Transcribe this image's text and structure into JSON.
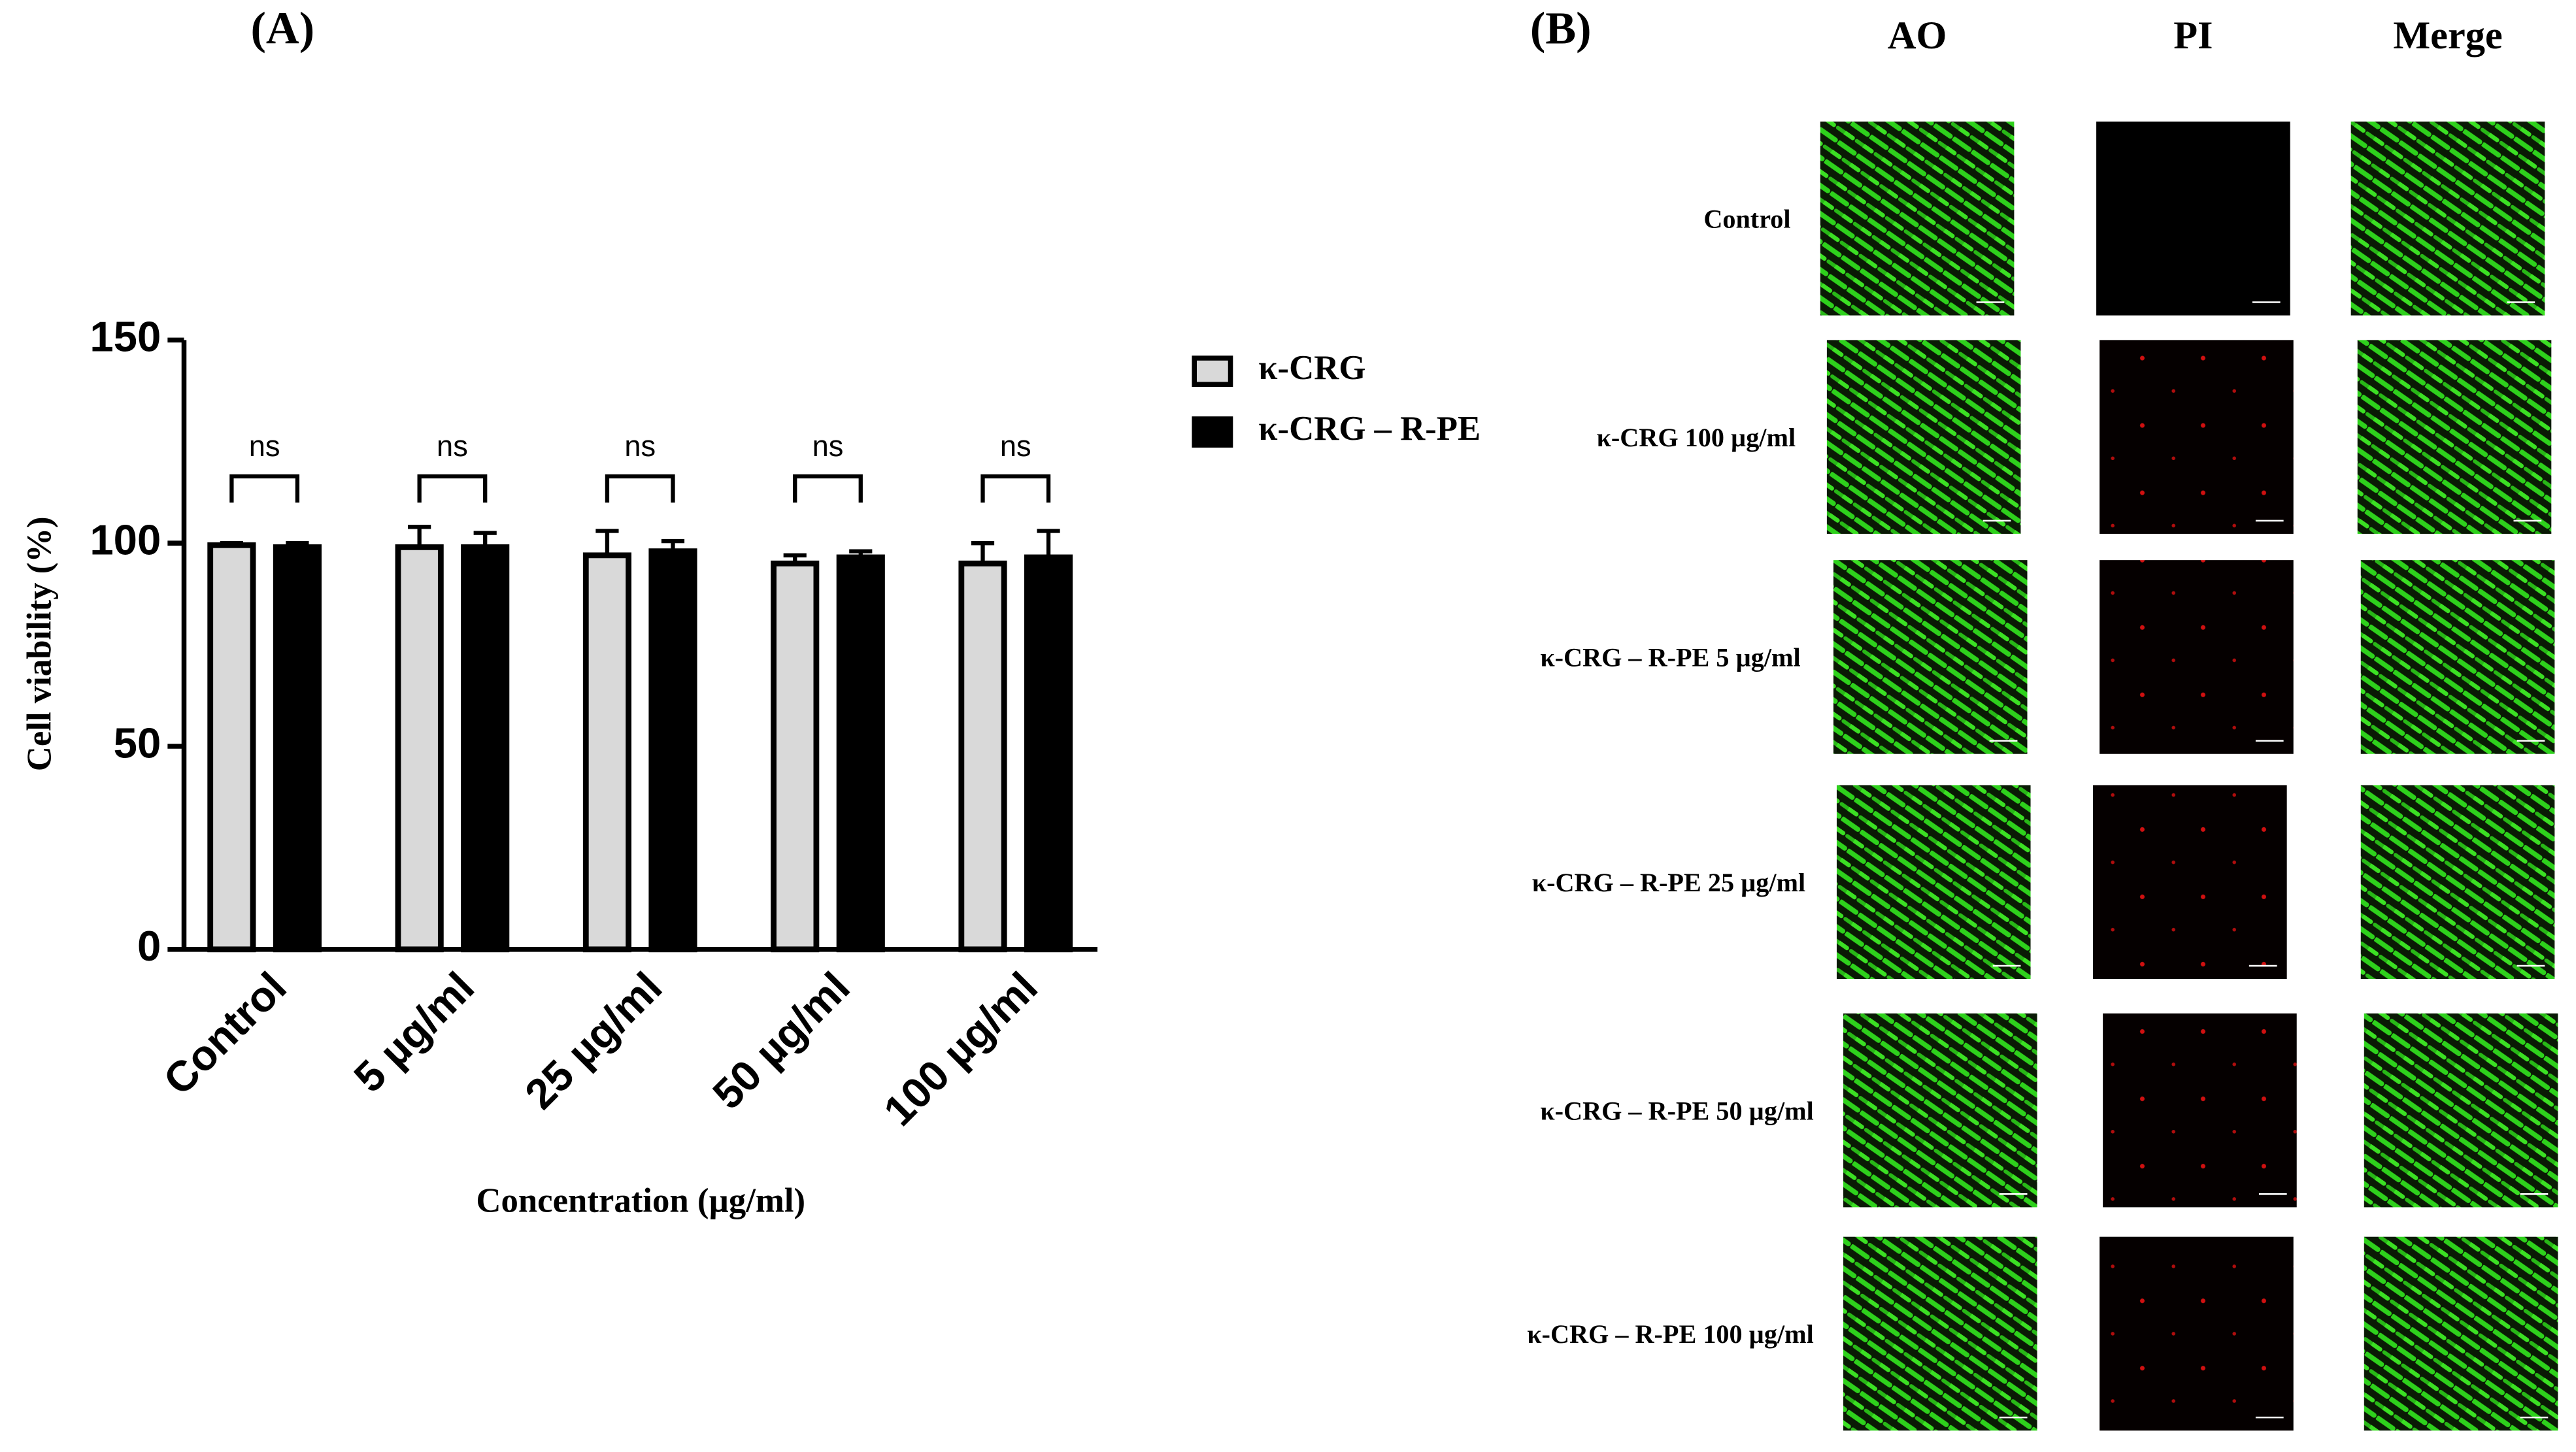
{
  "chart_data": {
    "type": "bar",
    "x_label": "Concentration (µg/ml)",
    "y_label": "Cell viability (%)",
    "categories": [
      "Control",
      "5 µg/ml",
      "25 µg/ml",
      "50 µg/ml",
      "100 µg/ml"
    ],
    "series": [
      {
        "name": "κ-CRG",
        "color": "#d9d9d9",
        "values": [
          99.5,
          99,
          97,
          95,
          95
        ],
        "errors": [
          0.5,
          5,
          6,
          2,
          5
        ]
      },
      {
        "name": "κ-CRG – R-PE",
        "color": "#000000",
        "values": [
          99,
          99,
          98,
          96.5,
          96.5
        ],
        "errors": [
          1,
          3.5,
          2.5,
          1.5,
          6.5
        ]
      }
    ],
    "annotations": [
      "ns",
      "ns",
      "ns",
      "ns",
      "ns"
    ],
    "ylim": [
      0,
      150
    ],
    "yticks": [
      0,
      50,
      100,
      150
    ],
    "grid": false,
    "legend": "right"
  },
  "figure": {
    "panel_a_label": "(A)",
    "panel_b": {
      "label": "(B)",
      "columns": [
        "AO",
        "PI",
        "Merge"
      ],
      "rows": [
        "Control",
        "κ-CRG 100 µg/ml",
        "κ-CRG – R-PE 5 µg/ml",
        "κ-CRG – R-PE 25 µg/ml",
        "κ-CRG – R-PE 50 µg/ml",
        "κ-CRG – R-PE 100 µg/ml"
      ]
    }
  }
}
